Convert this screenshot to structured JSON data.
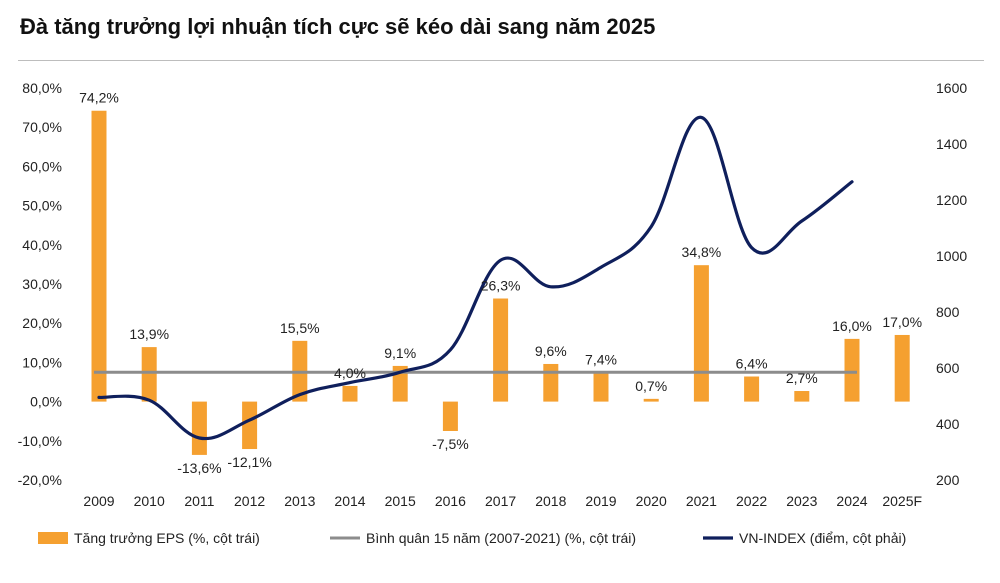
{
  "chart_data": {
    "type": "bar",
    "title": "Đà tăng trưởng lợi nhuận tích cực sẽ kéo dài sang năm 2025",
    "categories": [
      "2009",
      "2010",
      "2011",
      "2012",
      "2013",
      "2014",
      "2015",
      "2016",
      "2017",
      "2018",
      "2019",
      "2020",
      "2021",
      "2022",
      "2023",
      "2024",
      "2025F"
    ],
    "series": [
      {
        "name": "Tăng trưởng EPS (%, cột trái)",
        "type": "bar",
        "axis": "left",
        "values": [
          74.2,
          13.9,
          -13.6,
          -12.1,
          15.5,
          4.0,
          9.1,
          -7.5,
          26.3,
          9.6,
          7.4,
          0.7,
          34.8,
          6.4,
          2.7,
          16.0,
          17.0
        ],
        "labels": [
          "74,2%",
          "13,9%",
          "-13,6%",
          "-12,1%",
          "15,5%",
          "4,0%",
          "9,1%",
          "-7,5%",
          "26,3%",
          "9,6%",
          "7,4%",
          "0,7%",
          "34,8%",
          "6,4%",
          "2,7%",
          "16,0%",
          "17,0%"
        ]
      },
      {
        "name": "Bình quân 15 năm (2007-2021) (%, cột trái)",
        "type": "line",
        "axis": "left",
        "value": 7.5
      },
      {
        "name": "VN-INDEX (điểm, cột phải)",
        "type": "line",
        "axis": "right",
        "values": [
          495,
          485,
          350,
          414,
          505,
          548,
          585,
          665,
          985,
          890,
          960,
          1105,
          1495,
          1030,
          1125,
          1265,
          null
        ]
      }
    ],
    "left_axis": {
      "min": -20,
      "max": 80,
      "step": 10,
      "tick_labels": [
        "-20,0%",
        "-10,0%",
        "0,0%",
        "10,0%",
        "20,0%",
        "30,0%",
        "40,0%",
        "50,0%",
        "60,0%",
        "70,0%",
        "80,0%"
      ]
    },
    "right_axis": {
      "min": 200,
      "max": 1600,
      "step": 200,
      "tick_labels": [
        "200",
        "400",
        "600",
        "800",
        "1000",
        "1200",
        "1400",
        "1600"
      ]
    },
    "grid": false,
    "legend_position": "bottom",
    "colors": {
      "bar": "#f5a030",
      "average": "#8c8c8c",
      "index": "#0f1f5c"
    }
  }
}
